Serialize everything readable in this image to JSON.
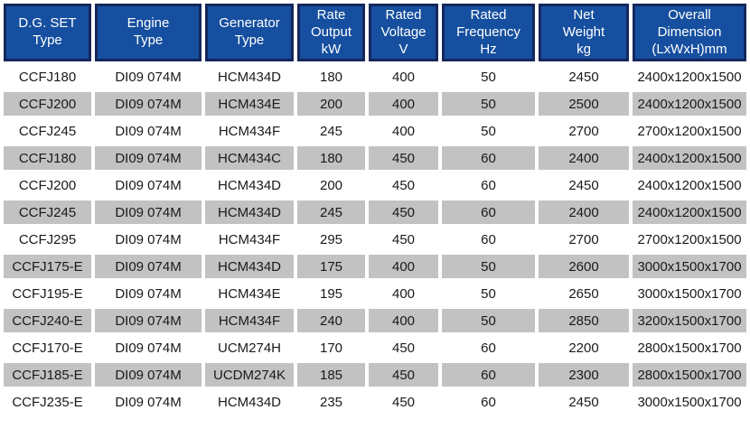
{
  "chart_data": {
    "type": "table",
    "title": "",
    "columns": [
      "D.G. SET\nType",
      "Engine\nType",
      "Generator\nType",
      "Rate\nOutput\nkW",
      "Rated\nVoltage\nV",
      "Rated\nFrequency\nHz",
      "Net\nWeight\nkg",
      "Overall\nDimension\n(LxWxH)mm"
    ],
    "rows": [
      [
        "CCFJ180",
        "DI09 074M",
        "HCM434D",
        "180",
        "400",
        "50",
        "2450",
        "2400x1200x1500"
      ],
      [
        "CCFJ200",
        "DI09 074M",
        "HCM434E",
        "200",
        "400",
        "50",
        "2500",
        "2400x1200x1500"
      ],
      [
        "CCFJ245",
        "DI09 074M",
        "HCM434F",
        "245",
        "400",
        "50",
        "2700",
        "2700x1200x1500"
      ],
      [
        "CCFJ180",
        "DI09 074M",
        "HCM434C",
        "180",
        "450",
        "60",
        "2400",
        "2400x1200x1500"
      ],
      [
        "CCFJ200",
        "DI09 074M",
        "HCM434D",
        "200",
        "450",
        "60",
        "2450",
        "2400x1200x1500"
      ],
      [
        "CCFJ245",
        "DI09 074M",
        "HCM434D",
        "245",
        "450",
        "60",
        "2400",
        "2400x1200x1500"
      ],
      [
        "CCFJ295",
        "DI09 074M",
        "HCM434F",
        "295",
        "450",
        "60",
        "2700",
        "2700x1200x1500"
      ],
      [
        "CCFJ175-E",
        "DI09 074M",
        "HCM434D",
        "175",
        "400",
        "50",
        "2600",
        "3000x1500x1700"
      ],
      [
        "CCFJ195-E",
        "DI09 074M",
        "HCM434E",
        "195",
        "400",
        "50",
        "2650",
        "3000x1500x1700"
      ],
      [
        "CCFJ240-E",
        "DI09 074M",
        "HCM434F",
        "240",
        "400",
        "50",
        "2850",
        "3200x1500x1700"
      ],
      [
        "CCFJ170-E",
        "DI09 074M",
        "UCM274H",
        "170",
        "450",
        "60",
        "2200",
        "2800x1500x1700"
      ],
      [
        "CCFJ185-E",
        "DI09 074M",
        "UCDM274K",
        "185",
        "450",
        "60",
        "2300",
        "2800x1500x1700"
      ],
      [
        "CCFJ235-E",
        "DI09 074M",
        "HCM434D",
        "235",
        "450",
        "60",
        "2450",
        "3000x1500x1700"
      ]
    ],
    "colors": {
      "header_bg": "#164f9f",
      "header_border": "#15275c",
      "header_text": "#ffffff",
      "row_bg": "#ffffff",
      "row_alt_bg": "#c2c2c2",
      "cell_text": "#1a1a1a"
    },
    "layout": {
      "striped": true,
      "first_data_row_background": "white",
      "grid": "white gaps between cells",
      "legend": "none",
      "row_count": 13,
      "column_count": 8
    }
  }
}
